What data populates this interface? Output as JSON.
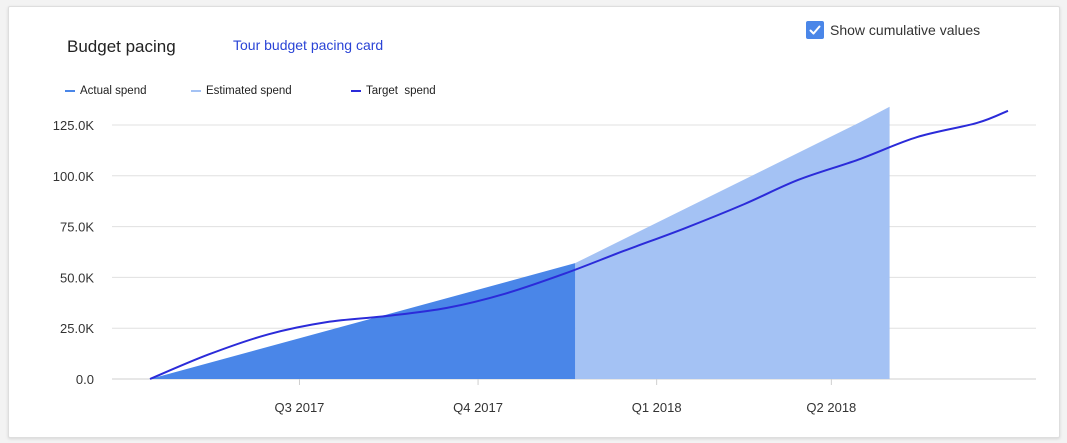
{
  "card": {
    "title": "Budget pacing",
    "tour_link": "Tour budget pacing card",
    "show_cumulative_label": "Show cumulative values",
    "show_cumulative_checked": true
  },
  "colors": {
    "actual": "#4a86e8",
    "estimated": "#a4c2f4",
    "target": "#2b2bd9",
    "grid": "#e0e0e0",
    "checkbox": "#4a86e8",
    "link": "#2a44d6"
  },
  "chart_data": {
    "type": "area",
    "series": [
      {
        "name": "Actual spend",
        "kind": "area",
        "points": [
          [
            "2017-04-15",
            0
          ],
          [
            "2017-11-20",
            57
          ]
        ]
      },
      {
        "name": "Estimated spend",
        "kind": "area",
        "points": [
          [
            "2017-11-20",
            57
          ],
          [
            "2018-04-15",
            126
          ],
          [
            "2018-05-01",
            134
          ]
        ]
      },
      {
        "name": "Target  spend",
        "kind": "line",
        "points": [
          [
            "2017-04-15",
            0
          ],
          [
            "2017-05-15",
            12
          ],
          [
            "2017-06-15",
            22
          ],
          [
            "2017-07-15",
            28
          ],
          [
            "2017-08-15",
            31
          ],
          [
            "2017-09-15",
            35
          ],
          [
            "2017-10-15",
            42
          ],
          [
            "2017-11-15",
            52
          ],
          [
            "2017-12-15",
            63
          ],
          [
            "2018-01-15",
            74
          ],
          [
            "2018-02-15",
            86
          ],
          [
            "2018-03-15",
            98
          ],
          [
            "2018-04-15",
            108
          ],
          [
            "2018-05-15",
            119
          ],
          [
            "2018-06-15",
            126
          ],
          [
            "2018-07-01",
            132
          ]
        ]
      }
    ],
    "x_ticks": [
      {
        "label": "Q3 2017",
        "date": "2017-07-01"
      },
      {
        "label": "Q4 2017",
        "date": "2017-10-01"
      },
      {
        "label": "Q1 2018",
        "date": "2018-01-01"
      },
      {
        "label": "Q2 2018",
        "date": "2018-04-01"
      }
    ],
    "x_range": [
      "2017-04-15",
      "2018-07-01"
    ],
    "y_ticks": [
      {
        "label": "0.0",
        "value": 0
      },
      {
        "label": "25.0K",
        "value": 25
      },
      {
        "label": "50.0K",
        "value": 50
      },
      {
        "label": "75.0K",
        "value": 75
      },
      {
        "label": "100.0K",
        "value": 100
      },
      {
        "label": "125.0K",
        "value": 125
      }
    ],
    "ylim": [
      0,
      125
    ],
    "grid": true,
    "legend_position": "top-left"
  }
}
